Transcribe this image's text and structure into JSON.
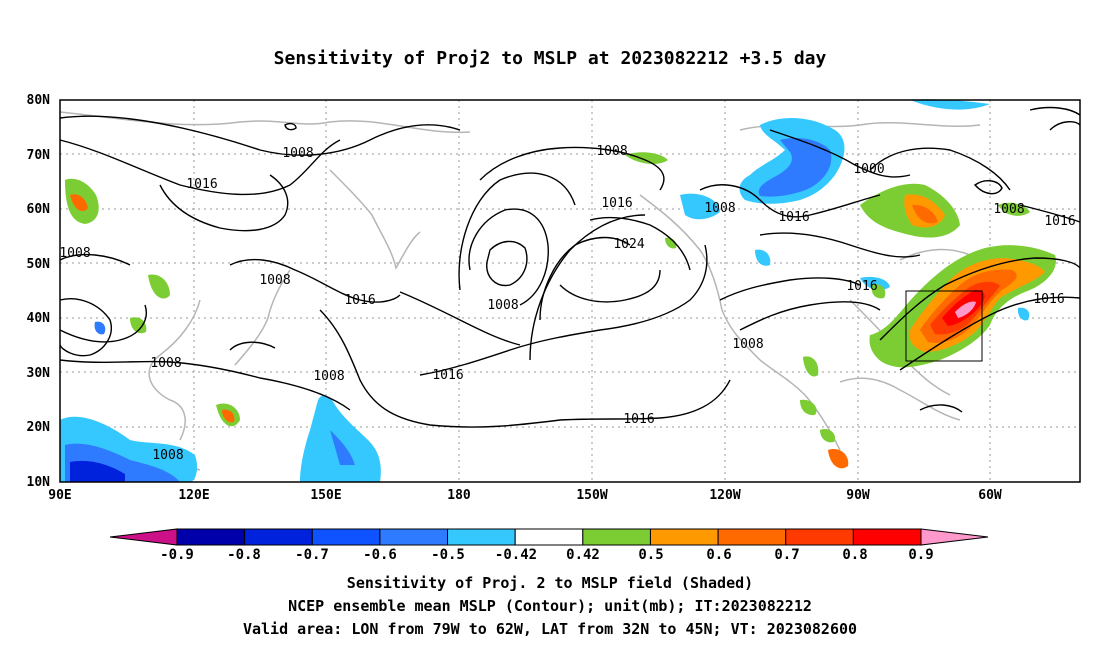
{
  "title": "Sensitivity of Proj2 to MSLP at 2023082212 +3.5 day",
  "map": {
    "lat_labels": [
      "80N",
      "70N",
      "60N",
      "50N",
      "40N",
      "30N",
      "20N",
      "10N"
    ],
    "lon_labels": [
      "90E",
      "120E",
      "150E",
      "180",
      "150W",
      "120W",
      "90W",
      "60W"
    ],
    "contour_labels": [
      "1008",
      "1016",
      "1008",
      "1008",
      "1016",
      "1008",
      "1008",
      "1008",
      "1008",
      "1016",
      "1024",
      "1016",
      "1008",
      "1016",
      "1008",
      "1000",
      "1008",
      "1016",
      "1016",
      "1016",
      "1008",
      "1016"
    ],
    "valid_area_box": {
      "lon_range": "79W to 62W",
      "lat_range": "32N to 45N"
    }
  },
  "colorbar": {
    "labels": [
      "-0.9",
      "-0.8",
      "-0.7",
      "-0.6",
      "-0.5",
      "-0.42",
      "0.42",
      "0.5",
      "0.6",
      "0.7",
      "0.8",
      "0.9"
    ],
    "colors": [
      "#0000aa",
      "#0022dd",
      "#0f52ff",
      "#2f7bff",
      "#35c8ff",
      "#ffffff",
      "#7ccd33",
      "#ff9900",
      "#ff6a00",
      "#ff3a00",
      "#ff0000"
    ],
    "end_low": "#cc1188",
    "end_high": "#ff99cc"
  },
  "captions": {
    "line1": "Sensitivity of Proj. 2 to MSLP field (Shaded)",
    "line2": "NCEP ensemble mean MSLP (Contour); unit(mb); IT:2023082212",
    "line3": "Valid area: LON from 79W to 62W, LAT from 32N to 45N; VT: 2023082600"
  }
}
